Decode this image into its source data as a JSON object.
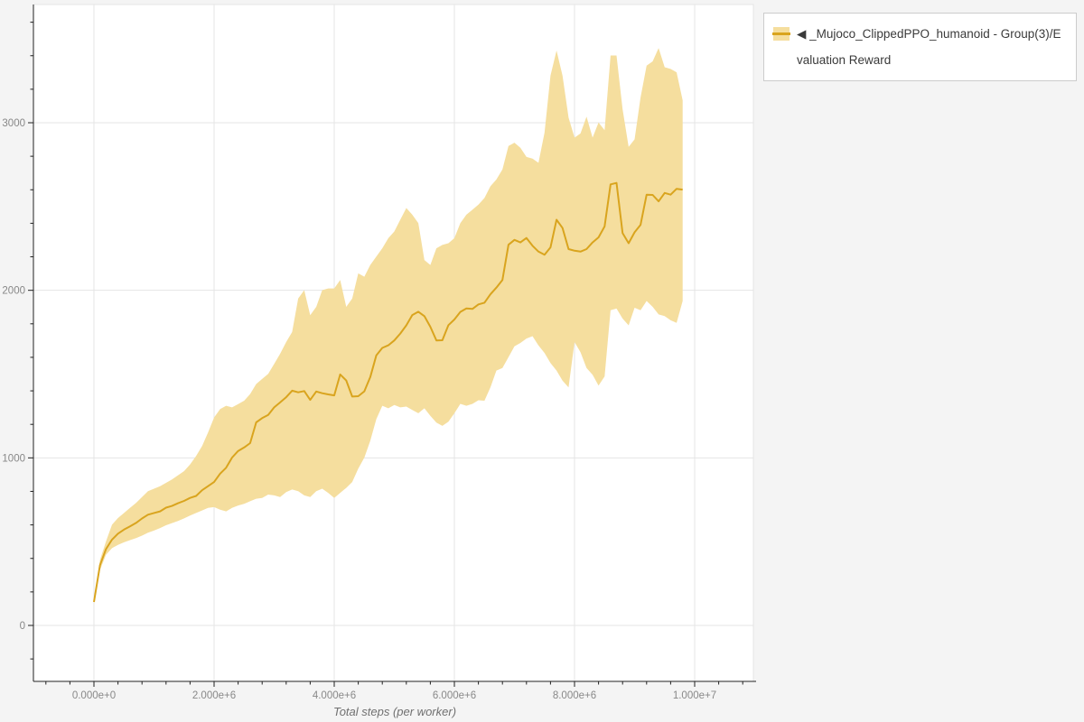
{
  "legend": {
    "label": "◀ _Mujoco_ClippedPPO_humanoid - Group(3)/Evaluation Reward",
    "border_color": "#cccccc",
    "background": "#ffffff"
  },
  "colors": {
    "line": "#d9a41e",
    "band": "#f5de9e",
    "grid": "#e5e5e5",
    "axis": "#222222",
    "tick_label": "#888888",
    "page_background": "#f4f4f4",
    "plot_background": "#ffffff"
  },
  "chart_data": {
    "type": "line",
    "title": "",
    "xlabel": "Total steps (per worker)",
    "ylabel": "",
    "x_unit": "millions of steps",
    "xlim_e6": [
      -1.0,
      11.0
    ],
    "ylim": [
      -334,
      3700
    ],
    "grid": "on",
    "legend_position": "top-right",
    "x_axis": {
      "ticks": [
        {
          "value": 0,
          "label": "0.000e+0"
        },
        {
          "value": 2,
          "label": "2.000e+6"
        },
        {
          "value": 4,
          "label": "4.000e+6"
        },
        {
          "value": 6,
          "label": "6.000e+6"
        },
        {
          "value": 8,
          "label": "8.000e+6"
        },
        {
          "value": 10,
          "label": "1.000e+7"
        }
      ],
      "minor_step": 0.4
    },
    "y_axis": {
      "ticks": [
        {
          "value": 0,
          "label": "0"
        },
        {
          "value": 1000,
          "label": "1000"
        },
        {
          "value": 2000,
          "label": "2000"
        },
        {
          "value": 3000,
          "label": "3000"
        }
      ],
      "minor_step": 200
    },
    "series": [
      {
        "name": "◀ _Mujoco_ClippedPPO_humanoid - Group(3)/Evaluation Reward",
        "line_color": "#d9a41e",
        "band_color": "#f5de9e",
        "x_e6": [
          0,
          0.1,
          0.2,
          0.3,
          0.4,
          0.5,
          0.6,
          0.7,
          0.8,
          0.9,
          1,
          1.1,
          1.2,
          1.3,
          1.4,
          1.5,
          1.6,
          1.7,
          1.8,
          1.9,
          2,
          2.1,
          2.2,
          2.3,
          2.4,
          2.5,
          2.6,
          2.7,
          2.8,
          2.9,
          3,
          3.1,
          3.2,
          3.3,
          3.4,
          3.5,
          3.6,
          3.7,
          3.8,
          3.9,
          4,
          4.1,
          4.2,
          4.3,
          4.4,
          4.5,
          4.6,
          4.7,
          4.8,
          4.9,
          5,
          5.1,
          5.2,
          5.3,
          5.4,
          5.5,
          5.6,
          5.7,
          5.8,
          5.9,
          6,
          6.1,
          6.2,
          6.3,
          6.4,
          6.5,
          6.6,
          6.7,
          6.8,
          6.9,
          7,
          7.1,
          7.2,
          7.3,
          7.4,
          7.5,
          7.6,
          7.7,
          7.8,
          7.9,
          8,
          8.1,
          8.2,
          8.3,
          8.4,
          8.5,
          8.6,
          8.7,
          8.8,
          8.9,
          9,
          9.1,
          9.2,
          9.3,
          9.4,
          9.5,
          9.6,
          9.7,
          9.8
        ],
        "mean": [
          140,
          360,
          455,
          512,
          548,
          572,
          591,
          612,
          638,
          661,
          671,
          681,
          703,
          713,
          729,
          743,
          761,
          773,
          807,
          831,
          856,
          906,
          941,
          1002,
          1041,
          1062,
          1088,
          1212,
          1237,
          1256,
          1301,
          1331,
          1362,
          1401,
          1391,
          1399,
          1346,
          1396,
          1386,
          1379,
          1373,
          1498,
          1462,
          1366,
          1368,
          1397,
          1482,
          1612,
          1656,
          1672,
          1701,
          1742,
          1791,
          1852,
          1872,
          1846,
          1782,
          1701,
          1702,
          1792,
          1826,
          1871,
          1892,
          1889,
          1916,
          1926,
          1976,
          2016,
          2062,
          2272,
          2301,
          2286,
          2312,
          2266,
          2231,
          2212,
          2256,
          2421,
          2372,
          2246,
          2236,
          2231,
          2246,
          2286,
          2316,
          2381,
          2632,
          2641,
          2342,
          2281,
          2346,
          2391,
          2571,
          2569,
          2531,
          2581,
          2571,
          2606,
          2601
        ],
        "lo": [
          132,
          331,
          421,
          461,
          481,
          496,
          509,
          521,
          536,
          553,
          566,
          581,
          598,
          611,
          623,
          639,
          656,
          671,
          686,
          701,
          706,
          691,
          681,
          701,
          716,
          726,
          741,
          756,
          761,
          781,
          776,
          766,
          796,
          811,
          801,
          776,
          766,
          801,
          816,
          791,
          761,
          791,
          821,
          856,
          936,
          1001,
          1102,
          1231,
          1311,
          1296,
          1316,
          1301,
          1306,
          1286,
          1266,
          1296,
          1251,
          1211,
          1191,
          1216,
          1266,
          1322,
          1311,
          1322,
          1344,
          1341,
          1421,
          1521,
          1536,
          1601,
          1666,
          1686,
          1712,
          1726,
          1671,
          1626,
          1566,
          1521,
          1461,
          1421,
          1691,
          1631,
          1536,
          1496,
          1431,
          1486,
          1881,
          1891,
          1831,
          1791,
          1896,
          1881,
          1936,
          1901,
          1856,
          1846,
          1821,
          1806,
          1936
        ],
        "hi": [
          150,
          391,
          501,
          601,
          641,
          671,
          701,
          731,
          766,
          801,
          816,
          831,
          851,
          871,
          896,
          921,
          961,
          1011,
          1071,
          1151,
          1241,
          1291,
          1311,
          1301,
          1321,
          1341,
          1381,
          1441,
          1471,
          1501,
          1561,
          1621,
          1691,
          1751,
          1951,
          2001,
          1851,
          1901,
          2001,
          2011,
          2011,
          2061,
          1901,
          1951,
          2101,
          2081,
          2151,
          2201,
          2251,
          2311,
          2351,
          2421,
          2491,
          2451,
          2401,
          2181,
          2151,
          2251,
          2271,
          2281,
          2311,
          2401,
          2451,
          2481,
          2511,
          2551,
          2621,
          2661,
          2721,
          2861,
          2881,
          2851,
          2796,
          2786,
          2761,
          2941,
          3281,
          3431,
          3281,
          3031,
          2911,
          2936,
          3036,
          2911,
          3001,
          2956,
          3401,
          3401,
          3081,
          2856,
          2901,
          3151,
          3341,
          3366,
          3446,
          3331,
          3321,
          3301,
          3134
        ]
      }
    ]
  }
}
